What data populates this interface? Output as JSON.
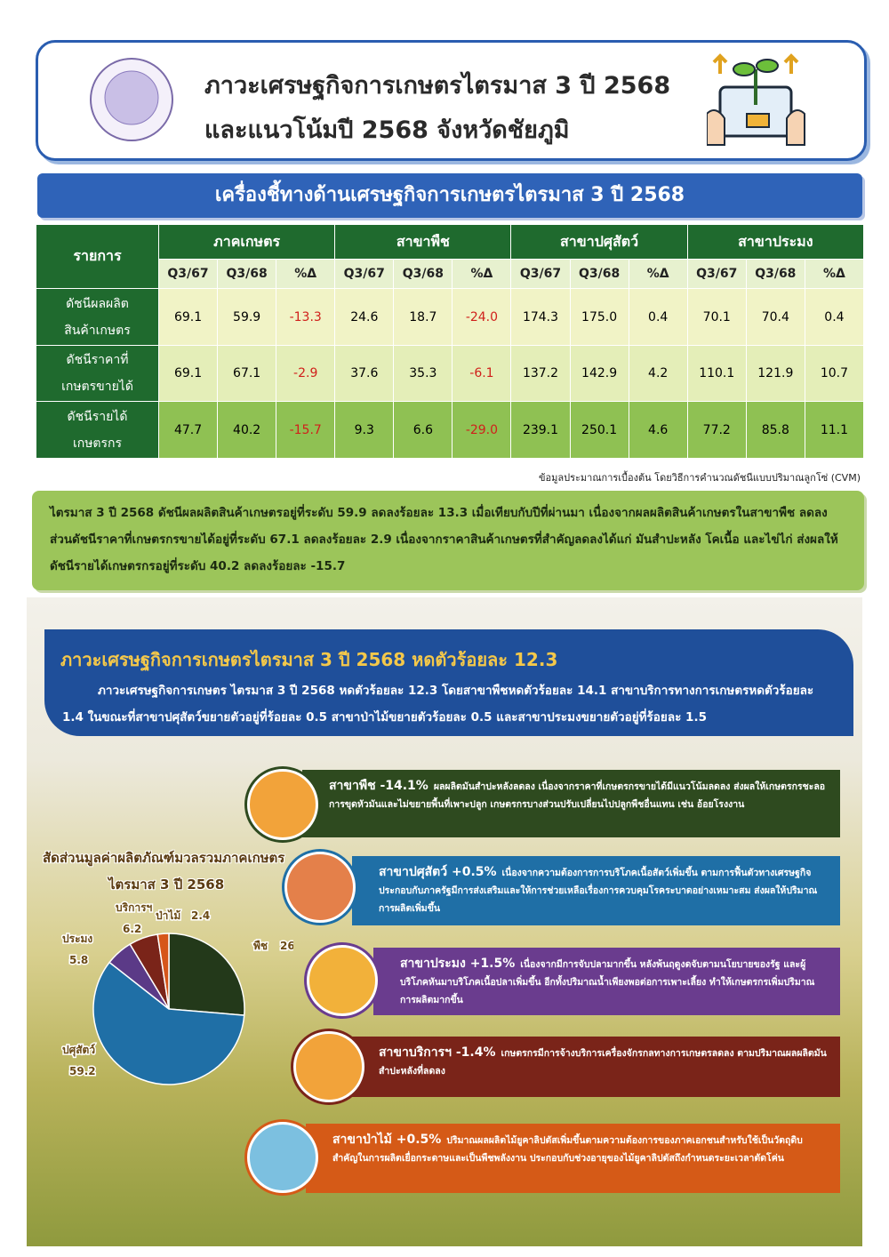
{
  "header": {
    "title_line1": "ภาวะเศรษฐกิจการเกษตรไตรมาส 3 ปี 2568",
    "title_line2": "และแนวโน้มปี 2568 จังหวัดชัยภูมิ"
  },
  "indicators": {
    "title": "เครื่องชี้ทางด้านเศรษฐกิจการเกษตรไตรมาส 3 ปี 2568",
    "table": {
      "corner": "รายการ",
      "groups": [
        {
          "name": "ภาคเกษตร",
          "columns": [
            "Q3/67",
            "Q3/68",
            "%Δ"
          ]
        },
        {
          "name": "สาขาพืช",
          "columns": [
            "Q3/67",
            "Q3/68",
            "%Δ"
          ]
        },
        {
          "name": "สาขาปศุสัตว์",
          "columns": [
            "Q3/67",
            "Q3/68",
            "%Δ"
          ]
        },
        {
          "name": "สาขาประมง",
          "columns": [
            "Q3/67",
            "Q3/68",
            "%Δ"
          ]
        }
      ],
      "rows": [
        {
          "label": [
            "ดัชนีผลผลิต",
            "สินค้าเกษตร"
          ],
          "cells": [
            "69.1",
            "59.9",
            "-13.3",
            "24.6",
            "18.7",
            "-24.0",
            "174.3",
            "175.0",
            "0.4",
            "70.1",
            "70.4",
            "0.4"
          ]
        },
        {
          "label": [
            "ดัชนีราคาที่",
            "เกษตรขายได้"
          ],
          "cells": [
            "69.1",
            "67.1",
            "-2.9",
            "37.6",
            "35.3",
            "-6.1",
            "137.2",
            "142.9",
            "4.2",
            "110.1",
            "121.9",
            "10.7"
          ]
        },
        {
          "label": [
            "ดัชนีรายได้",
            "เกษตรกร"
          ],
          "cells": [
            "47.7",
            "40.2",
            "-15.7",
            "9.3",
            "6.6",
            "-29.0",
            "239.1",
            "250.1",
            "4.6",
            "77.2",
            "85.8",
            "11.1"
          ]
        }
      ]
    },
    "footnote": "ข้อมูลประมาณการเบื้องต้น โดยวิธีการคำนวณดัชนีแบบปริมาณลูกโซ่ (CVM)",
    "summary": "ไตรมาส 3 ปี 2568 ดัชนีผลผลิตสินค้าเกษตรอยู่ที่ระดับ 59.9 ลดลงร้อยละ 13.3 เมื่อเทียบกับปีที่ผ่านมา เนื่องจากผลผลิตสินค้าเกษตรในสาขาพืช ลดลง ส่วนดัชนีราคาที่เกษตรกรขายได้อยู่ที่ระดับ 67.1 ลดลงร้อยละ 2.9 เนื่องจากราคาสินค้าเกษตรที่สำคัญลดลงได้แก่ มันสำปะหลัง โคเนื้อ และไข่ไก่ ส่งผลให้ดัชนีรายได้เกษตรกรอยู่ที่ระดับ 40.2 ลดลงร้อยละ -15.7"
  },
  "section": {
    "title": "ภาวะเศรษฐกิจการเกษตรไตรมาส 3 ปี 2568 หดตัวร้อยละ 12.3",
    "text": "ภาวะเศรษฐกิจการเกษตร ไตรมาส 3 ปี 2568 หดตัวร้อยละ 12.3 โดยสาขาพืชหดตัวร้อยละ 14.1 สาขาบริการทางการเกษตรหดตัวร้อยละ 1.4 ในขณะที่สาขาปศุสัตว์ขยายตัวอยู่ที่ร้อยละ 0.5 สาขาป่าไม้ขยายตัวร้อยละ 0.5 และสาขาประมงขยายตัวอยู่ที่ร้อยละ 1.5"
  },
  "sectors": [
    {
      "title": "สาขาพืช -14.1%",
      "text": "ผลผลิตมันสำปะหลังลดลง เนื่องจากราคาที่เกษตรกรขายได้มีแนวโน้มลดลง ส่งผลให้เกษตรกรชะลอการขุดหัวมันและไม่ขยายพื้นที่เพาะปลูก เกษตรกรบางส่วนปรับเปลี่ยนไปปลูกพืชอื่นแทน เช่น อ้อยโรงงาน"
    },
    {
      "title": "สาขาปศุสัตว์ +0.5%",
      "text": "เนื่องจากความต้องการการบริโภคเนื้อสัตว์เพิ่มขึ้น ตามการฟื้นตัวทางเศรษฐกิจ ประกอบกับภาครัฐมีการส่งเสริมและให้การช่วยเหลือเรื่องการควบคุมโรคระบาดอย่างเหมาะสม ส่งผลให้ปริมาณการผลิตเพิ่มขึ้น"
    },
    {
      "title": "สาขาประมง +1.5%",
      "text": "เนื่องจากมีการจับปลามากขึ้น หลังพ้นฤดูงดจับตามนโยบายของรัฐ และผู้บริโภคหันมาบริโภคเนื้อปลาเพิ่มขึ้น อีกทั้งปริมาณน้ำเพียงพอต่อการเพาะเลี้ยง ทำให้เกษตรกรเพิ่มปริมาณการผลิตมากขึ้น"
    },
    {
      "title": "สาขาบริการฯ -1.4%",
      "text": "เกษตรกรมีการจ้างบริการเครื่องจักรกลทางการเกษตรลดลง ตามปริมาณผลผลิตมันสำปะหลังที่ลดลง"
    },
    {
      "title": "สาขาป่าไม้ +0.5%",
      "text": "ปริมาณผลผลิตไม้ยูคาลิปตัสเพิ่มขึ้นตามความต้องการของภาคเอกชนสำหรับใช้เป็นวัตถุดิบสำคัญในการผลิตเยื่อกระดาษและเป็นพืชพลังงาน ประกอบกับช่วงอายุของไม้ยูคาลิปตัสถึงกำหนดระยะเวลาตัดโค่น"
    }
  ],
  "chart_data": {
    "type": "pie",
    "title": [
      "สัดส่วนมูลค่าผลิตภัณฑ์มวลรวมภาคเกษตร",
      "ไตรมาส 3 ปี 2568"
    ],
    "categories": [
      "พืช",
      "ปศุสัตว์",
      "ประมง",
      "บริการฯ",
      "ป่าไม้"
    ],
    "values": [
      26.3,
      59.2,
      5.8,
      6.2,
      2.4
    ],
    "colors": [
      "#23391a",
      "#1f6fa6",
      "#5b3a87",
      "#7a2419",
      "#d6561a"
    ]
  }
}
